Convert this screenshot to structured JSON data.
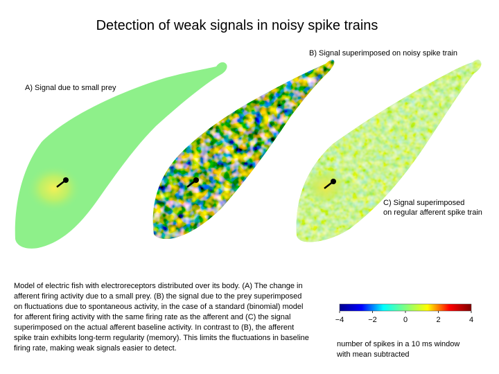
{
  "title": "Detection of weak signals in noisy spike trains",
  "panels": {
    "a_label": "A) Signal due to small prey",
    "b_label": "B) Signal superimposed on noisy spike train",
    "c_label_line1": "C) Signal superimposed",
    "c_label_line2": "on regular afferent spike train"
  },
  "caption": "Model of electric fish with electroreceptors distributed over its body. (A) The change in afferent firing activity due to a small prey. (B) the signal due to the prey superimposed on fluctuations due to spontaneous activity, in the case of a standard (binomial) model for afferent firing activity with the same firing rate as the afferent and (C) the signal superimposed on the actual afferent baseline activity. In contrast to (B), the afferent spike train exhibits long-term regularity (memory). This limits the fluctuations in baseline firing rate, making weak signals easier to detect.",
  "colorbar": {
    "ticks": [
      "−4",
      "−2",
      "0",
      "2",
      "4"
    ],
    "label_line1": "number of spikes in a 10 ms window",
    "label_line2": "with mean subtracted",
    "colors": [
      "#00008f",
      "#0000ff",
      "#00ffff",
      "#80ff80",
      "#ffff00",
      "#ff0000",
      "#800000"
    ]
  },
  "colors": {
    "body_baseline": "#8ef08a",
    "prey_spot": "#f2f25a",
    "prey_marker": "#000000"
  }
}
